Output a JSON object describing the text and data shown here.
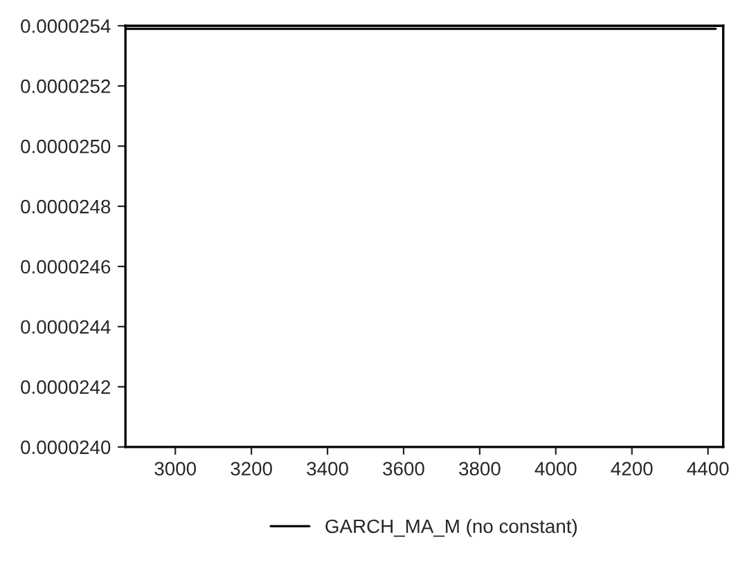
{
  "chart_data": {
    "type": "line",
    "series": [
      {
        "name": "GARCH_MA_M (no constant)",
        "color": "#000000",
        "x": [
          2870,
          4420
        ],
        "values": [
          2.539e-05,
          2.539e-05
        ]
      }
    ],
    "xlim": [
      2869,
      4440
    ],
    "xticks": [
      3000,
      3200,
      3400,
      3600,
      3800,
      4000,
      4200,
      4400
    ],
    "ylim": [
      2.4e-05,
      2.54e-05
    ],
    "yticks": [
      {
        "value": 2.4e-05,
        "label": "0.0000240"
      },
      {
        "value": 2.42e-05,
        "label": "0.0000242"
      },
      {
        "value": 2.44e-05,
        "label": "0.0000244"
      },
      {
        "value": 2.46e-05,
        "label": "0.0000246"
      },
      {
        "value": 2.48e-05,
        "label": "0.0000248"
      },
      {
        "value": 2.5e-05,
        "label": "0.0000250"
      },
      {
        "value": 2.52e-05,
        "label": "0.0000252"
      },
      {
        "value": 2.54e-05,
        "label": "0.0000254"
      }
    ],
    "grid": false,
    "legend": "bottom",
    "line_style": "solid",
    "marker": "none"
  }
}
